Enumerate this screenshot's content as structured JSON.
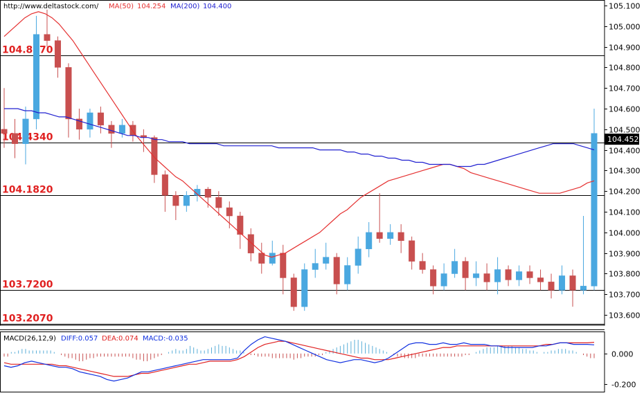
{
  "header": {
    "site": "http://www.deltastock.com/",
    "ma50_label": "MA(50)",
    "ma50_value": "104.254",
    "ma200_label": "MA(200)",
    "ma200_value": "104.400"
  },
  "macd_header": {
    "label": "MACD(26,12,9)",
    "diff_label": "DIFF:0.057",
    "dea_label": "DEA:0.074",
    "macd_label": "MACD:-0.035"
  },
  "colors": {
    "up_candle": "#4aa8e0",
    "down_candle": "#c84f4f",
    "ma50": "#e53030",
    "ma200": "#2020d0",
    "level_label": "#e02020",
    "diff": "#1030e0",
    "dea": "#e02020",
    "histogram_pos": "#5aaed8",
    "histogram_neg": "#c85050"
  },
  "chart_data": [
    {
      "type": "candlestick",
      "title": "",
      "ylim": [
        103.55,
        105.12
      ],
      "y_ticks": [
        "105.100",
        "105.000",
        "104.900",
        "104.800",
        "104.700",
        "104.600",
        "104.500",
        "104.400",
        "104.300",
        "104.200",
        "104.100",
        "104.000",
        "103.900",
        "103.800",
        "103.700",
        "103.600"
      ],
      "current_price": "104.452",
      "levels": [
        {
          "label": "104.8570",
          "value": 104.857
        },
        {
          "label": "104.4340",
          "value": 104.434
        },
        {
          "label": "104.1820",
          "value": 104.182
        },
        {
          "label": "103.7200",
          "value": 103.72
        },
        {
          "label": "103.2070",
          "value": 103.207
        }
      ],
      "ma50_values": [
        104.95,
        104.98,
        105.01,
        105.04,
        105.06,
        105.07,
        105.06,
        105.04,
        105.01,
        104.97,
        104.93,
        104.88,
        104.83,
        104.78,
        104.73,
        104.68,
        104.63,
        104.58,
        104.53,
        104.48,
        104.44,
        104.4,
        104.36,
        104.33,
        104.3,
        104.27,
        104.25,
        104.22,
        104.19,
        104.16,
        104.13,
        104.1,
        104.07,
        104.04,
        104.01,
        103.98,
        103.95,
        103.92,
        103.89,
        103.88,
        103.89,
        103.9,
        103.92,
        103.94,
        103.96,
        103.98,
        104.0,
        104.03,
        104.06,
        104.09,
        104.11,
        104.14,
        104.17,
        104.19,
        104.21,
        104.23,
        104.25,
        104.26,
        104.27,
        104.28,
        104.29,
        104.3,
        104.31,
        104.32,
        104.33,
        104.33,
        104.32,
        104.31,
        104.29,
        104.28,
        104.27,
        104.26,
        104.25,
        104.24,
        104.23,
        104.22,
        104.21,
        104.2,
        104.19,
        104.19,
        104.19,
        104.19,
        104.2,
        104.21,
        104.22,
        104.24,
        104.25
      ],
      "ma200_values": [
        104.6,
        104.6,
        104.6,
        104.59,
        104.59,
        104.58,
        104.58,
        104.57,
        104.56,
        104.56,
        104.55,
        104.54,
        104.53,
        104.52,
        104.51,
        104.5,
        104.49,
        104.48,
        104.47,
        104.47,
        104.46,
        104.46,
        104.45,
        104.45,
        104.44,
        104.44,
        104.44,
        104.43,
        104.43,
        104.43,
        104.43,
        104.43,
        104.42,
        104.42,
        104.42,
        104.42,
        104.42,
        104.42,
        104.42,
        104.42,
        104.41,
        104.41,
        104.41,
        104.41,
        104.41,
        104.41,
        104.4,
        104.4,
        104.4,
        104.4,
        104.39,
        104.39,
        104.38,
        104.38,
        104.37,
        104.37,
        104.36,
        104.36,
        104.35,
        104.35,
        104.34,
        104.34,
        104.33,
        104.33,
        104.33,
        104.33,
        104.32,
        104.32,
        104.32,
        104.33,
        104.33,
        104.34,
        104.35,
        104.36,
        104.37,
        104.38,
        104.39,
        104.4,
        104.41,
        104.42,
        104.43,
        104.43,
        104.43,
        104.43,
        104.42,
        104.41,
        104.4
      ],
      "candles": [
        [
          104.5,
          104.48,
          104.7,
          104.41
        ],
        [
          104.48,
          104.43,
          104.55,
          104.36
        ],
        [
          104.43,
          104.55,
          104.61,
          104.33
        ],
        [
          104.55,
          104.96,
          105.05,
          104.5
        ],
        [
          104.96,
          104.93,
          105.08,
          104.9
        ],
        [
          104.93,
          104.8,
          104.95,
          104.75
        ],
        [
          104.8,
          104.55,
          104.82,
          104.46
        ],
        [
          104.55,
          104.5,
          104.6,
          104.45
        ],
        [
          104.5,
          104.58,
          104.6,
          104.46
        ],
        [
          104.58,
          104.52,
          104.61,
          104.48
        ],
        [
          104.52,
          104.48,
          104.54,
          104.41
        ],
        [
          104.48,
          104.52,
          104.55,
          104.46
        ],
        [
          104.52,
          104.47,
          104.54,
          104.44
        ],
        [
          104.47,
          104.46,
          104.5,
          104.39
        ],
        [
          104.46,
          104.28,
          104.47,
          104.24
        ],
        [
          104.28,
          104.18,
          104.3,
          104.1
        ],
        [
          104.18,
          104.13,
          104.2,
          104.06
        ],
        [
          104.13,
          104.18,
          104.2,
          104.1
        ],
        [
          104.18,
          104.21,
          104.23,
          104.15
        ],
        [
          104.21,
          104.17,
          104.22,
          104.12
        ],
        [
          104.17,
          104.12,
          104.2,
          104.08
        ],
        [
          104.12,
          104.08,
          104.15,
          104.02
        ],
        [
          104.08,
          103.99,
          104.1,
          103.92
        ],
        [
          103.99,
          103.9,
          104.02,
          103.86
        ],
        [
          103.9,
          103.85,
          103.95,
          103.8
        ],
        [
          103.85,
          103.9,
          103.96,
          103.84
        ],
        [
          103.9,
          103.78,
          103.94,
          103.7
        ],
        [
          103.78,
          103.64,
          103.8,
          103.62
        ],
        [
          103.64,
          103.82,
          103.85,
          103.62
        ],
        [
          103.82,
          103.85,
          103.92,
          103.78
        ],
        [
          103.85,
          103.88,
          103.95,
          103.82
        ],
        [
          103.88,
          103.75,
          103.9,
          103.7
        ],
        [
          103.75,
          103.84,
          103.88,
          103.72
        ],
        [
          103.84,
          103.92,
          103.98,
          103.8
        ],
        [
          103.92,
          104.0,
          104.05,
          103.88
        ],
        [
          104.0,
          103.97,
          104.19,
          103.95
        ],
        [
          103.97,
          104.0,
          104.04,
          103.94
        ],
        [
          104.0,
          103.96,
          104.04,
          103.9
        ],
        [
          103.96,
          103.86,
          103.98,
          103.82
        ],
        [
          103.86,
          103.82,
          103.9,
          103.8
        ],
        [
          103.82,
          103.74,
          103.84,
          103.7
        ],
        [
          103.74,
          103.8,
          103.85,
          103.72
        ],
        [
          103.8,
          103.86,
          103.92,
          103.78
        ],
        [
          103.86,
          103.78,
          103.88,
          103.72
        ],
        [
          103.78,
          103.8,
          103.86,
          103.74
        ],
        [
          103.8,
          103.76,
          103.85,
          103.72
        ],
        [
          103.76,
          103.82,
          103.88,
          103.7
        ],
        [
          103.82,
          103.77,
          103.84,
          103.74
        ],
        [
          103.77,
          103.81,
          103.84,
          103.74
        ],
        [
          103.81,
          103.78,
          103.84,
          103.75
        ],
        [
          103.78,
          103.76,
          103.82,
          103.72
        ],
        [
          103.76,
          103.72,
          103.8,
          103.68
        ],
        [
          103.72,
          103.79,
          103.84,
          103.7
        ],
        [
          103.79,
          103.72,
          103.82,
          103.64
        ],
        [
          103.72,
          103.74,
          104.08,
          103.7
        ],
        [
          103.74,
          104.48,
          104.6,
          103.72
        ]
      ]
    },
    {
      "type": "line",
      "title": "MACD",
      "ylim": [
        -0.25,
        0.14
      ],
      "y_ticks": [
        "0.000",
        "-0.200"
      ],
      "diff_values": [
        -0.08,
        -0.09,
        -0.08,
        -0.06,
        -0.05,
        -0.06,
        -0.07,
        -0.08,
        -0.09,
        -0.09,
        -0.1,
        -0.12,
        -0.13,
        -0.14,
        -0.15,
        -0.17,
        -0.18,
        -0.17,
        -0.16,
        -0.14,
        -0.12,
        -0.12,
        -0.11,
        -0.1,
        -0.09,
        -0.08,
        -0.07,
        -0.06,
        -0.05,
        -0.04,
        -0.04,
        -0.04,
        -0.04,
        -0.04,
        -0.03,
        0.02,
        0.06,
        0.09,
        0.11,
        0.1,
        0.09,
        0.08,
        0.06,
        0.04,
        0.02,
        0.0,
        -0.02,
        -0.04,
        -0.05,
        -0.06,
        -0.05,
        -0.04,
        -0.04,
        -0.05,
        -0.06,
        -0.05,
        -0.03,
        0.0,
        0.03,
        0.06,
        0.07,
        0.07,
        0.06,
        0.06,
        0.07,
        0.06,
        0.06,
        0.07,
        0.06,
        0.06,
        0.06,
        0.05,
        0.05,
        0.04,
        0.04,
        0.04,
        0.04,
        0.04,
        0.05,
        0.05,
        0.06,
        0.07,
        0.07,
        0.06,
        0.06,
        0.06,
        0.057
      ],
      "dea_values": [
        -0.06,
        -0.07,
        -0.07,
        -0.07,
        -0.07,
        -0.07,
        -0.07,
        -0.07,
        -0.08,
        -0.08,
        -0.09,
        -0.1,
        -0.11,
        -0.12,
        -0.13,
        -0.14,
        -0.15,
        -0.15,
        -0.15,
        -0.14,
        -0.13,
        -0.13,
        -0.12,
        -0.11,
        -0.1,
        -0.09,
        -0.08,
        -0.07,
        -0.07,
        -0.06,
        -0.05,
        -0.05,
        -0.05,
        -0.05,
        -0.04,
        -0.02,
        0.01,
        0.04,
        0.06,
        0.07,
        0.08,
        0.08,
        0.07,
        0.06,
        0.05,
        0.04,
        0.03,
        0.02,
        0.01,
        0.0,
        -0.01,
        -0.02,
        -0.03,
        -0.03,
        -0.04,
        -0.04,
        -0.04,
        -0.03,
        -0.02,
        -0.01,
        0.0,
        0.01,
        0.02,
        0.03,
        0.04,
        0.04,
        0.05,
        0.05,
        0.05,
        0.05,
        0.05,
        0.05,
        0.05,
        0.05,
        0.05,
        0.05,
        0.05,
        0.05,
        0.05,
        0.06,
        0.06,
        0.07,
        0.07,
        0.07,
        0.07,
        0.07,
        0.074
      ],
      "histogram_values": [
        -0.02,
        -0.02,
        0.01,
        0.01,
        0.02,
        0.03,
        0.03,
        0.02,
        0.02,
        0.02,
        0.02,
        0.02,
        0.02,
        0.02,
        0.01,
        0.0,
        -0.01,
        -0.02,
        -0.03,
        -0.03,
        -0.04,
        -0.05,
        -0.05,
        -0.04,
        -0.03,
        -0.03,
        -0.02,
        -0.02,
        -0.02,
        -0.02,
        -0.02,
        -0.02,
        -0.02,
        -0.02,
        -0.02,
        -0.02,
        -0.03,
        -0.04,
        -0.04,
        -0.05,
        -0.05,
        -0.04,
        -0.03,
        -0.02,
        -0.01,
        0.0,
        0.01,
        0.02,
        0.03,
        0.02,
        0.02,
        0.03,
        0.05,
        0.04,
        0.03,
        0.02,
        0.02,
        0.03,
        0.04,
        0.05,
        0.06,
        0.05,
        0.05,
        0.04,
        0.03,
        0.02,
        0.02,
        0.01,
        0.0,
        -0.01,
        -0.01,
        -0.02,
        -0.02,
        -0.02,
        -0.02,
        -0.03,
        -0.03,
        -0.03,
        -0.03,
        -0.03,
        -0.03,
        -0.04,
        -0.03,
        -0.03,
        -0.02,
        -0.02,
        -0.02,
        -0.02,
        -0.01,
        -0.01,
        0.01,
        0.02,
        0.03,
        0.04,
        0.05,
        0.06,
        0.07,
        0.08,
        0.09,
        0.09,
        0.08,
        0.07,
        0.06,
        0.05,
        0.04,
        0.03,
        0.02,
        0.01,
        0.0,
        -0.01,
        -0.02,
        -0.02,
        -0.03,
        -0.03,
        -0.03,
        -0.03,
        -0.02,
        -0.02,
        -0.02,
        -0.02,
        -0.02,
        -0.02,
        -0.02,
        -0.02,
        -0.02,
        -0.02,
        -0.02,
        -0.02,
        -0.02,
        -0.01,
        -0.01,
        0.0,
        0.01,
        0.02,
        0.03,
        0.04,
        0.04,
        0.04,
        0.05,
        0.05,
        0.05,
        0.05,
        0.05,
        0.04,
        0.04,
        0.03,
        0.03,
        0.02,
        0.02,
        0.01,
        0.0,
        0.01,
        0.01,
        0.02,
        0.02,
        0.03,
        0.03,
        0.03,
        0.02,
        0.02,
        0.01,
        0.0,
        -0.01,
        -0.02,
        -0.03,
        -0.03
      ]
    }
  ]
}
